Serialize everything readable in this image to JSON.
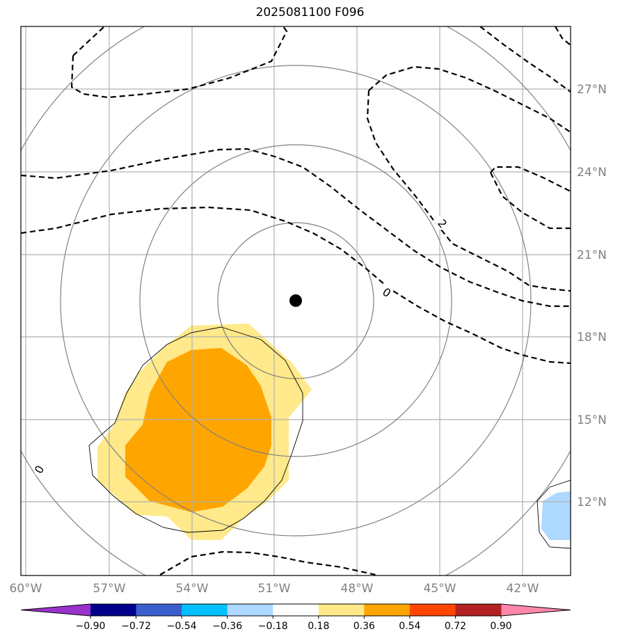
{
  "title": "2025081100 F096",
  "lon_labels": [
    "60°W",
    "57°W",
    "54°W",
    "51°W",
    "48°W",
    "45°W",
    "42°W"
  ],
  "lat_labels": [
    "27°N",
    "24°N",
    "21°N",
    "18°N",
    "15°N",
    "12°N"
  ],
  "contour_labels": [
    "2",
    "0",
    "0"
  ],
  "colorbar": {
    "ticks": [
      "−0.90",
      "−0.72",
      "−0.54",
      "−0.36",
      "−0.18",
      "0.18",
      "0.36",
      "0.54",
      "0.72",
      "0.90"
    ],
    "colors": [
      "#9932cc",
      "#00008b",
      "#3a5fcd",
      "#00bfff",
      "#add8ff",
      "#ffffff",
      "#ffe98a",
      "#ffa500",
      "#ff4500",
      "#b22222",
      "#ff88aa"
    ]
  },
  "colors": {
    "anomaly_light": "#ffe98a",
    "anomaly_orange": "#ffa500",
    "anomaly_lightblue": "#add8ff",
    "grid": "#b0b0b0",
    "circles": "#808080"
  },
  "map": {
    "lon_range": [
      "60°W",
      "40°W"
    ],
    "lat_range": [
      "9.5°N",
      "29.5°N"
    ],
    "center_marker": "storm-center",
    "contour_style": "dashed"
  }
}
